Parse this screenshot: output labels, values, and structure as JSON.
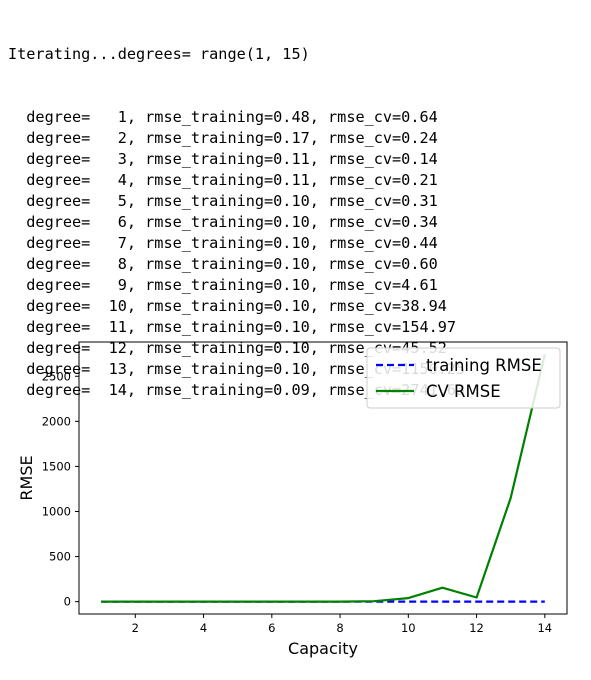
{
  "output": {
    "header": "Iterating...degrees= range(1, 15)",
    "lines": [
      "  degree=   1, rmse_training=0.48, rmse_cv=0.64",
      "  degree=   2, rmse_training=0.17, rmse_cv=0.24",
      "  degree=   3, rmse_training=0.11, rmse_cv=0.14",
      "  degree=   4, rmse_training=0.11, rmse_cv=0.21",
      "  degree=   5, rmse_training=0.10, rmse_cv=0.31",
      "  degree=   6, rmse_training=0.10, rmse_cv=0.34",
      "  degree=   7, rmse_training=0.10, rmse_cv=0.44",
      "  degree=   8, rmse_training=0.10, rmse_cv=0.60",
      "  degree=   9, rmse_training=0.10, rmse_cv=4.61",
      "  degree=  10, rmse_training=0.10, rmse_cv=38.94",
      "  degree=  11, rmse_training=0.10, rmse_cv=154.97",
      "  degree=  12, rmse_training=0.10, rmse_cv=45.52",
      "  degree=  13, rmse_training=0.10, rmse_cv=1150.25",
      "  degree=  14, rmse_training=0.09, rmse_cv=2741.63"
    ]
  },
  "chart_data": {
    "type": "line",
    "title": "",
    "xlabel": "Capacity",
    "ylabel": "RMSE",
    "x": [
      1,
      2,
      3,
      4,
      5,
      6,
      7,
      8,
      9,
      10,
      11,
      12,
      13,
      14
    ],
    "xlim": [
      0.35,
      14.65
    ],
    "ylim": [
      -137,
      2880
    ],
    "xticks": [
      2,
      4,
      6,
      8,
      10,
      12,
      14
    ],
    "yticks": [
      0,
      500,
      1000,
      1500,
      2000,
      2500
    ],
    "grid": false,
    "legend_position": "top-right",
    "series": [
      {
        "name": "training RMSE",
        "color": "#0000ff",
        "style": "dashed",
        "values": [
          0.48,
          0.17,
          0.11,
          0.11,
          0.1,
          0.1,
          0.1,
          0.1,
          0.1,
          0.1,
          0.1,
          0.1,
          0.1,
          0.09
        ]
      },
      {
        "name": "CV RMSE",
        "color": "#008000",
        "style": "solid",
        "values": [
          0.64,
          0.24,
          0.14,
          0.21,
          0.31,
          0.34,
          0.44,
          0.6,
          4.61,
          38.94,
          154.97,
          45.52,
          1150.25,
          2741.63
        ]
      }
    ]
  }
}
